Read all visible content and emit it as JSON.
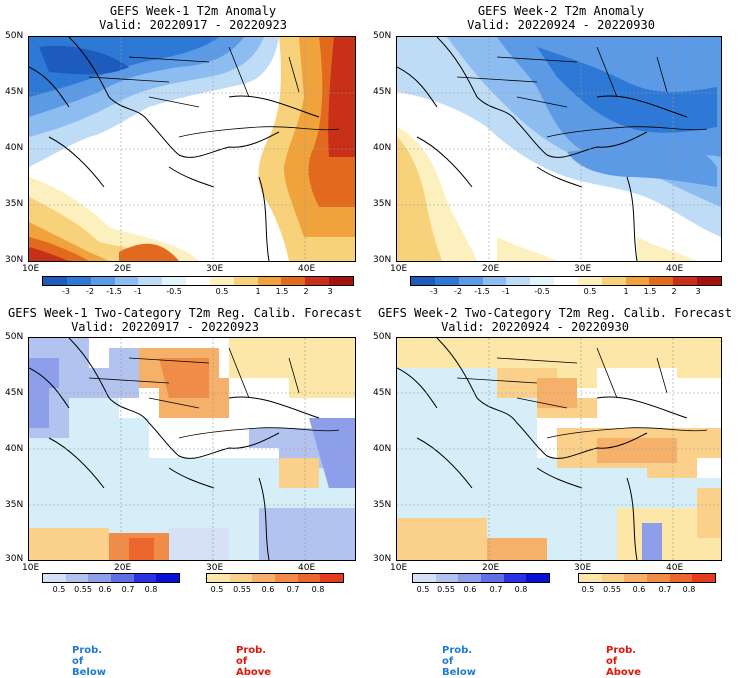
{
  "panels": [
    {
      "title": "GEFS Week-1 T2m Anomaly",
      "valid": "Valid: 20220917 - 20220923"
    },
    {
      "title": "GEFS Week-2 T2m Anomaly",
      "valid": "Valid: 20220924 - 20220930"
    },
    {
      "title": "GEFS Week-1 Two-Category T2m Reg. Calib. Forecast",
      "valid": "Valid: 20220917 - 20220923"
    },
    {
      "title": "GEFS Week-2 Two-Category T2m Reg. Calib. Forecast",
      "valid": "Valid: 20220924 - 20220930"
    }
  ],
  "axes": {
    "lat_labels": [
      "50N",
      "45N",
      "40N",
      "35N",
      "30N"
    ],
    "lon_labels": [
      "10E",
      "20E",
      "30E",
      "40E"
    ]
  },
  "anomaly_colorbar": {
    "labels": [
      "-3",
      "-2",
      "-1.5",
      "-1",
      "-0.5",
      "0.5",
      "1",
      "1.5",
      "2",
      "3"
    ],
    "colors": [
      "#1d5bbd",
      "#2f79d6",
      "#5d9ae6",
      "#8cbcf0",
      "#bfdcf7",
      "#e4f2fb",
      "#ffffff",
      "#fdf0bf",
      "#f7d27a",
      "#f0a23d",
      "#e26a1f",
      "#c9301a",
      "#a3140f"
    ]
  },
  "prob_colorbar": {
    "below_labels": [
      "0.5",
      "0.55",
      "0.6",
      "0.7",
      "0.8"
    ],
    "above_labels": [
      "0.5",
      "0.55",
      "0.6",
      "0.7",
      "0.8"
    ],
    "below_colors": [
      "#d6e0f6",
      "#b3c3f0",
      "#8d9eeb",
      "#5f6fe6",
      "#2b31e2",
      "#0710d9"
    ],
    "above_colors": [
      "#fde7a8",
      "#fbd08b",
      "#f5b06a",
      "#f08c48",
      "#ec6630",
      "#e63a1c"
    ],
    "below_label": "Prob. of Below",
    "above_label": "Prob. of Above",
    "below_color": "#1e7bd6",
    "above_color": "#e0170d"
  }
}
